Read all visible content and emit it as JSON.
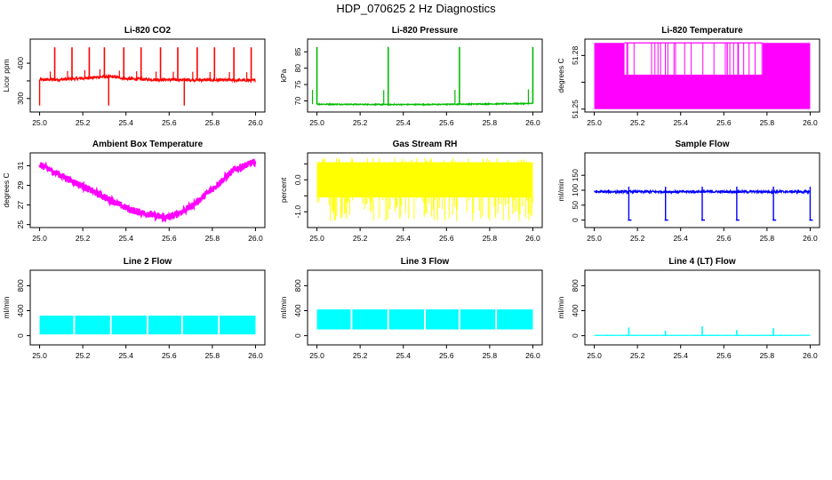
{
  "title": "HDP_070625 2 Hz Diagnostics",
  "chart_data": [
    {
      "type": "line",
      "title": "Li-820 CO2",
      "xlabel": "",
      "ylabel": "Licor ppm",
      "color": "#ff0000",
      "xlim": [
        25.0,
        26.0
      ],
      "ylim": [
        270,
        460
      ],
      "xticks": [
        25.0,
        25.2,
        25.4,
        25.6,
        25.8,
        26.0
      ],
      "xticklabels": [
        "25.0",
        "25.2",
        "25.4",
        "25.6",
        "25.8",
        "26.0"
      ],
      "yticks": [
        300,
        350,
        400
      ],
      "yticklabels": [
        "300",
        "",
        "400"
      ],
      "baseline": [
        [
          25.0,
          353
        ],
        [
          25.1,
          354
        ],
        [
          25.2,
          357
        ],
        [
          25.3,
          362
        ],
        [
          25.35,
          361
        ],
        [
          25.4,
          356
        ],
        [
          25.5,
          354
        ],
        [
          25.6,
          353
        ],
        [
          25.7,
          353
        ],
        [
          25.8,
          352
        ],
        [
          25.9,
          352
        ],
        [
          26.0,
          351
        ]
      ],
      "noise": 4,
      "spikes_up": [
        25.07,
        25.15,
        25.23,
        25.3,
        25.39,
        25.47,
        25.56,
        25.64,
        25.73,
        25.81,
        25.9,
        25.98
      ],
      "spike_up_to": 445,
      "spikes_down": [
        25.0,
        25.32,
        25.67
      ],
      "spike_down_to": 280
    },
    {
      "type": "line",
      "title": "Li-820 Pressure",
      "xlabel": "",
      "ylabel": "kPa",
      "color": "#00bb00",
      "xlim": [
        25.0,
        26.0
      ],
      "ylim": [
        67.5,
        88
      ],
      "xticks": [
        25.0,
        25.2,
        25.4,
        25.6,
        25.8,
        26.0
      ],
      "xticklabels": [
        "25.0",
        "25.2",
        "25.4",
        "25.6",
        "25.8",
        "26.0"
      ],
      "yticks": [
        70,
        75,
        80,
        85
      ],
      "yticklabels": [
        "70",
        "75",
        "80",
        "85"
      ],
      "baseline": [
        [
          25.0,
          69.0
        ],
        [
          25.3,
          68.9
        ],
        [
          25.5,
          68.9
        ],
        [
          26.0,
          69.2
        ]
      ],
      "noise": 0.15,
      "spikes_up": [
        25.0,
        25.33,
        25.66,
        26.0
      ],
      "spike_up_to": 86.5,
      "spikes_down": [],
      "spike_down_to": 68
    },
    {
      "type": "area",
      "title": "Li-820 Temperature",
      "xlabel": "",
      "ylabel": "degrees C",
      "color": "#ff00ff",
      "xlim": [
        25.0,
        26.0
      ],
      "ylim": [
        51.25,
        51.2875
      ],
      "xticks": [
        25.0,
        25.2,
        25.4,
        25.6,
        25.8,
        26.0
      ],
      "xticklabels": [
        "25.0",
        "25.2",
        "25.4",
        "25.6",
        "25.8",
        "26.0"
      ],
      "yticks": [
        51.25,
        51.265,
        51.28
      ],
      "yticklabels": [
        "51.25",
        "",
        "51.28"
      ],
      "levels": [
        51.25,
        51.269,
        51.287
      ],
      "high_segments": [
        [
          25.0,
          25.14
        ],
        [
          25.78,
          26.0
        ]
      ],
      "low_bursts": [
        [
          25.14,
          25.6
        ],
        [
          25.6,
          25.78
        ]
      ]
    },
    {
      "type": "line",
      "title": "Ambient Box Temperature",
      "xlabel": "",
      "ylabel": "degrees C",
      "color": "#ff00ff",
      "xlim": [
        25.0,
        26.0
      ],
      "ylim": [
        25,
        32
      ],
      "xticks": [
        25.0,
        25.2,
        25.4,
        25.6,
        25.8,
        26.0
      ],
      "xticklabels": [
        "25.0",
        "25.2",
        "25.4",
        "25.6",
        "25.8",
        "26.0"
      ],
      "yticks": [
        25,
        27,
        29,
        31
      ],
      "yticklabels": [
        "25",
        "27",
        "29",
        "31"
      ],
      "baseline": [
        [
          25.0,
          31.1
        ],
        [
          25.1,
          30.0
        ],
        [
          25.2,
          28.9
        ],
        [
          25.3,
          27.8
        ],
        [
          25.4,
          26.7
        ],
        [
          25.45,
          26.3
        ],
        [
          25.5,
          26.1
        ],
        [
          25.55,
          25.8
        ],
        [
          25.6,
          25.7
        ],
        [
          25.7,
          26.8
        ],
        [
          25.8,
          28.6
        ],
        [
          25.9,
          30.6
        ],
        [
          26.0,
          31.4
        ]
      ],
      "noise": 0.35
    },
    {
      "type": "line",
      "title": "Gas Stream RH",
      "xlabel": "",
      "ylabel": "percent",
      "color": "#ffff00",
      "xlim": [
        25.0,
        26.0
      ],
      "ylim": [
        -1.4,
        0.75
      ],
      "xticks": [
        25.0,
        25.2,
        25.4,
        25.6,
        25.8,
        26.0
      ],
      "xticklabels": [
        "25.0",
        "25.2",
        "25.4",
        "25.6",
        "25.8",
        "26.0"
      ],
      "yticks": [
        -1.0,
        -0.5,
        0.0,
        0.5
      ],
      "yticklabels": [
        "-1.0",
        "",
        "0.0",
        ""
      ],
      "band": [
        -0.55,
        0.55
      ],
      "spike_low": -1.3,
      "spike_high": 0.7
    },
    {
      "type": "line",
      "title": "Sample Flow",
      "xlabel": "",
      "ylabel": "ml/min",
      "color": "#0000ff",
      "xlim": [
        25.0,
        26.0
      ],
      "ylim": [
        -15,
        215
      ],
      "xticks": [
        25.0,
        25.2,
        25.4,
        25.6,
        25.8,
        26.0
      ],
      "xticklabels": [
        "25.0",
        "25.2",
        "25.4",
        "25.6",
        "25.8",
        "26.0"
      ],
      "yticks": [
        0,
        50,
        100,
        150
      ],
      "yticklabels": [
        "0",
        "50",
        "100",
        "150"
      ],
      "baseline": [
        [
          25.0,
          95
        ],
        [
          26.0,
          95
        ]
      ],
      "noise": 4,
      "dips": [
        25.16,
        25.33,
        25.5,
        25.66,
        25.83,
        26.0
      ],
      "dip_to": 0,
      "dip_peak": 112
    },
    {
      "type": "area",
      "title": "Line 2 Flow",
      "xlabel": "",
      "ylabel": "ml/min",
      "color": "#00ffff",
      "xlim": [
        25.0,
        26.0
      ],
      "ylim": [
        -100,
        1000
      ],
      "xticks": [
        25.0,
        25.2,
        25.4,
        25.6,
        25.8,
        26.0
      ],
      "xticklabels": [
        "25.0",
        "25.2",
        "25.4",
        "25.6",
        "25.8",
        "26.0"
      ],
      "yticks": [
        0,
        400,
        800
      ],
      "yticklabels": [
        "0",
        "400",
        "800"
      ],
      "band": [
        20,
        320
      ],
      "gaps": [
        25.16,
        25.33,
        25.5,
        25.66,
        25.83
      ]
    },
    {
      "type": "area",
      "title": "Line 3 Flow",
      "xlabel": "",
      "ylabel": "ml/min",
      "color": "#00ffff",
      "xlim": [
        25.0,
        26.0
      ],
      "ylim": [
        -100,
        1000
      ],
      "xticks": [
        25.0,
        25.2,
        25.4,
        25.6,
        25.8,
        26.0
      ],
      "xticklabels": [
        "25.0",
        "25.2",
        "25.4",
        "25.6",
        "25.8",
        "26.0"
      ],
      "yticks": [
        0,
        400,
        800
      ],
      "yticklabels": [
        "0",
        "400",
        "800"
      ],
      "band": [
        100,
        420
      ],
      "gaps": [
        25.16,
        25.33,
        25.5,
        25.66,
        25.83
      ]
    },
    {
      "type": "line",
      "title": "Line 4 (LT) Flow",
      "xlabel": "",
      "ylabel": "ml/min",
      "color": "#00ffff",
      "xlim": [
        25.0,
        26.0
      ],
      "ylim": [
        -100,
        1000
      ],
      "xticks": [
        25.0,
        25.2,
        25.4,
        25.6,
        25.8,
        26.0
      ],
      "xticklabels": [
        "25.0",
        "25.2",
        "25.4",
        "25.6",
        "25.8",
        "26.0"
      ],
      "yticks": [
        0,
        400,
        800
      ],
      "yticklabels": [
        "0",
        "400",
        "800"
      ],
      "baseline": [
        [
          25.0,
          5
        ],
        [
          26.0,
          5
        ]
      ],
      "noise": 2,
      "spikes_up": [
        25.16,
        25.33,
        25.5,
        25.66,
        25.83
      ],
      "spike_heights": [
        130,
        80,
        150,
        90,
        120
      ]
    }
  ]
}
